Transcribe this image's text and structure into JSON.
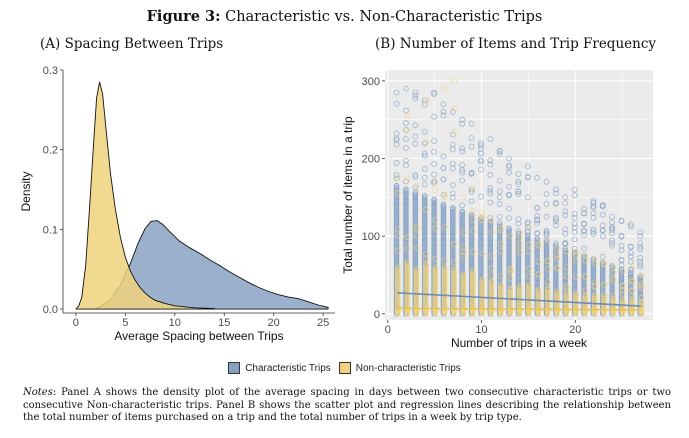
{
  "figure": {
    "label": "Figure 3:",
    "title": "Characteristic vs. Non-Characteristic Trips"
  },
  "panels": {
    "a": {
      "title": "(A) Spacing Between Trips"
    },
    "b": {
      "title": "(B) Number of Items and Trip Frequency"
    }
  },
  "legend": {
    "items": [
      {
        "label": "Characteristic Trips",
        "color": "#88a2c4"
      },
      {
        "label": "Non-characteristic Trips",
        "color": "#f0d27c"
      }
    ]
  },
  "notes": {
    "label": "Notes",
    "text": ": Panel A shows the density plot of the average spacing in days between two consecutive characteristic trips or two consecutive Non-characteristic trips. Panel B shows the scatter plot and regression lines describing the relationship between the total number of items purchased on a trip and the total number of trips in a week by trip type."
  },
  "chart_data": [
    {
      "type": "area",
      "xlabel": "Average Spacing between Trips",
      "ylabel": "Density",
      "xlim": [
        -1.3,
        26.2
      ],
      "ylim": [
        -0.005,
        0.3
      ],
      "x_ticks": [
        0,
        5,
        10,
        15,
        20,
        25
      ],
      "y_ticks": [
        0.0,
        0.1,
        0.2,
        0.3
      ],
      "x_tick_labels": [
        "0",
        "5",
        "10",
        "15",
        "20",
        "25"
      ],
      "y_tick_labels": [
        "0.0",
        "0.1",
        "0.2",
        "0.3"
      ],
      "grid": false,
      "series": [
        {
          "name": "Non-characteristic Trips",
          "color": "#f0d27c",
          "points": [
            [
              0.0,
              0.0
            ],
            [
              0.3,
              0.004
            ],
            [
              0.6,
              0.015
            ],
            [
              1.0,
              0.055
            ],
            [
              1.4,
              0.13
            ],
            [
              1.8,
              0.21
            ],
            [
              2.1,
              0.265
            ],
            [
              2.4,
              0.285
            ],
            [
              2.7,
              0.27
            ],
            [
              3.1,
              0.22
            ],
            [
              3.5,
              0.17
            ],
            [
              4.0,
              0.125
            ],
            [
              4.5,
              0.09
            ],
            [
              5.0,
              0.065
            ],
            [
              5.5,
              0.048
            ],
            [
              6.0,
              0.036
            ],
            [
              6.5,
              0.027
            ],
            [
              7.0,
              0.02
            ],
            [
              7.5,
              0.015
            ],
            [
              8.0,
              0.011
            ],
            [
              9.0,
              0.007
            ],
            [
              10.0,
              0.004
            ],
            [
              12.0,
              0.0015
            ],
            [
              14.0,
              0.0005
            ]
          ]
        },
        {
          "name": "Characteristic Trips",
          "color": "#88a2c4",
          "points": [
            [
              1.8,
              0.0
            ],
            [
              2.5,
              0.003
            ],
            [
              3.5,
              0.012
            ],
            [
              4.5,
              0.03
            ],
            [
              5.5,
              0.057
            ],
            [
              6.3,
              0.083
            ],
            [
              7.0,
              0.101
            ],
            [
              7.6,
              0.11
            ],
            [
              8.2,
              0.111
            ],
            [
              8.8,
              0.106
            ],
            [
              9.5,
              0.097
            ],
            [
              10.5,
              0.085
            ],
            [
              11.5,
              0.077
            ],
            [
              12.5,
              0.07
            ],
            [
              13.5,
              0.062
            ],
            [
              14.5,
              0.055
            ],
            [
              15.5,
              0.047
            ],
            [
              16.5,
              0.04
            ],
            [
              17.5,
              0.033
            ],
            [
              18.5,
              0.027
            ],
            [
              19.5,
              0.022
            ],
            [
              20.5,
              0.018
            ],
            [
              21.5,
              0.015
            ],
            [
              22.5,
              0.013
            ],
            [
              23.5,
              0.009
            ],
            [
              24.5,
              0.005
            ],
            [
              25.5,
              0.002
            ]
          ]
        }
      ]
    },
    {
      "type": "scatter",
      "xlabel": "Number of trips in a week",
      "ylabel": "Total number of items in a trip",
      "xlim": [
        -0.3,
        28.3
      ],
      "ylim": [
        -8,
        314
      ],
      "x_ticks": [
        0,
        10,
        20
      ],
      "y_ticks": [
        0,
        100,
        200,
        300
      ],
      "x_tick_labels": [
        "0",
        "10",
        "20"
      ],
      "y_tick_labels": [
        "0",
        "100",
        "200",
        "300"
      ],
      "grid": true,
      "x_values": [
        1,
        27
      ],
      "series": [
        {
          "name": "Characteristic Trips",
          "color": "#88a2c4",
          "max_by_x": [
            285,
            290,
            285,
            275,
            285,
            270,
            260,
            250,
            245,
            220,
            225,
            210,
            200,
            180,
            190,
            175,
            170,
            160,
            150,
            160,
            135,
            145,
            140,
            125,
            120,
            115,
            105
          ],
          "regression": [
            [
              1,
              27
            ],
            [
              27,
              10
            ]
          ]
        },
        {
          "name": "Non-characteristic Trips",
          "color": "#f0d27c",
          "max_by_x": [
            175,
            255,
            165,
            275,
            170,
            290,
            300,
            150,
            160,
            130,
            120,
            110,
            100,
            105,
            110,
            90,
            95,
            85,
            80,
            80,
            75,
            70,
            65,
            60,
            55,
            60,
            50
          ],
          "regression": [
            [
              1,
              7
            ],
            [
              27,
              5
            ]
          ]
        }
      ]
    }
  ]
}
